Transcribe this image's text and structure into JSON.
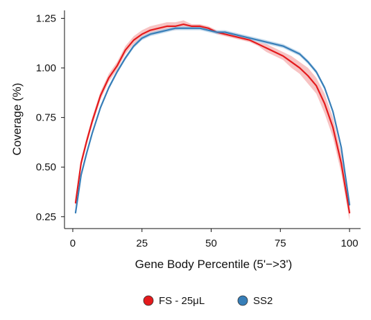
{
  "chart_data": {
    "type": "line",
    "title": "",
    "xlabel": "Gene Body Percentile (5'−>3')",
    "ylabel": "Coverage (%)",
    "xlim": [
      -3,
      104
    ],
    "ylim": [
      0.19,
      1.29
    ],
    "xticks": [
      0,
      25,
      50,
      75,
      100
    ],
    "xtick_labels": [
      "0",
      "25",
      "50",
      "75",
      "100"
    ],
    "yticks": [
      0.25,
      0.5,
      0.75,
      1.0,
      1.25
    ],
    "ytick_labels": [
      "0.25",
      "0.50",
      "0.75",
      "1.00",
      "1.25"
    ],
    "grid": false,
    "legend_position": "bottom",
    "x": [
      1,
      3,
      5,
      7,
      10,
      13,
      16,
      19,
      22,
      25,
      28,
      31,
      34,
      37,
      40,
      43,
      46,
      49,
      52,
      55,
      58,
      61,
      64,
      67,
      70,
      73,
      76,
      79,
      82,
      85,
      88,
      91,
      94,
      97,
      100
    ],
    "series": [
      {
        "name": "FS - 25μL",
        "color": "#e41a1c",
        "band_color": "#f4a9aa",
        "values": [
          0.32,
          0.52,
          0.63,
          0.73,
          0.86,
          0.95,
          1.01,
          1.09,
          1.14,
          1.17,
          1.19,
          1.2,
          1.21,
          1.21,
          1.22,
          1.21,
          1.21,
          1.2,
          1.18,
          1.17,
          1.16,
          1.15,
          1.14,
          1.12,
          1.1,
          1.08,
          1.06,
          1.03,
          1.0,
          0.96,
          0.91,
          0.82,
          0.7,
          0.52,
          0.27
        ],
        "band_halfwidth": [
          0.02,
          0.02,
          0.02,
          0.02,
          0.02,
          0.02,
          0.02,
          0.02,
          0.02,
          0.02,
          0.02,
          0.02,
          0.02,
          0.02,
          0.02,
          0.01,
          0.01,
          0.01,
          0.01,
          0.01,
          0.01,
          0.01,
          0.01,
          0.01,
          0.02,
          0.02,
          0.02,
          0.03,
          0.03,
          0.04,
          0.04,
          0.05,
          0.05,
          0.05,
          0.04
        ]
      },
      {
        "name": "SS2",
        "color": "#377eb8",
        "band_color": "#a9cbe6",
        "values": [
          0.27,
          0.46,
          0.57,
          0.67,
          0.8,
          0.9,
          0.98,
          1.05,
          1.11,
          1.15,
          1.17,
          1.18,
          1.19,
          1.2,
          1.2,
          1.2,
          1.2,
          1.19,
          1.18,
          1.18,
          1.17,
          1.16,
          1.15,
          1.14,
          1.13,
          1.12,
          1.11,
          1.09,
          1.07,
          1.03,
          0.98,
          0.9,
          0.78,
          0.6,
          0.31
        ],
        "band_halfwidth": [
          0.01,
          0.01,
          0.01,
          0.01,
          0.01,
          0.01,
          0.01,
          0.01,
          0.01,
          0.01,
          0.01,
          0.01,
          0.01,
          0.01,
          0.01,
          0.01,
          0.01,
          0.01,
          0.01,
          0.01,
          0.01,
          0.01,
          0.01,
          0.01,
          0.01,
          0.01,
          0.01,
          0.01,
          0.01,
          0.01,
          0.01,
          0.01,
          0.01,
          0.01,
          0.01
        ]
      }
    ]
  }
}
